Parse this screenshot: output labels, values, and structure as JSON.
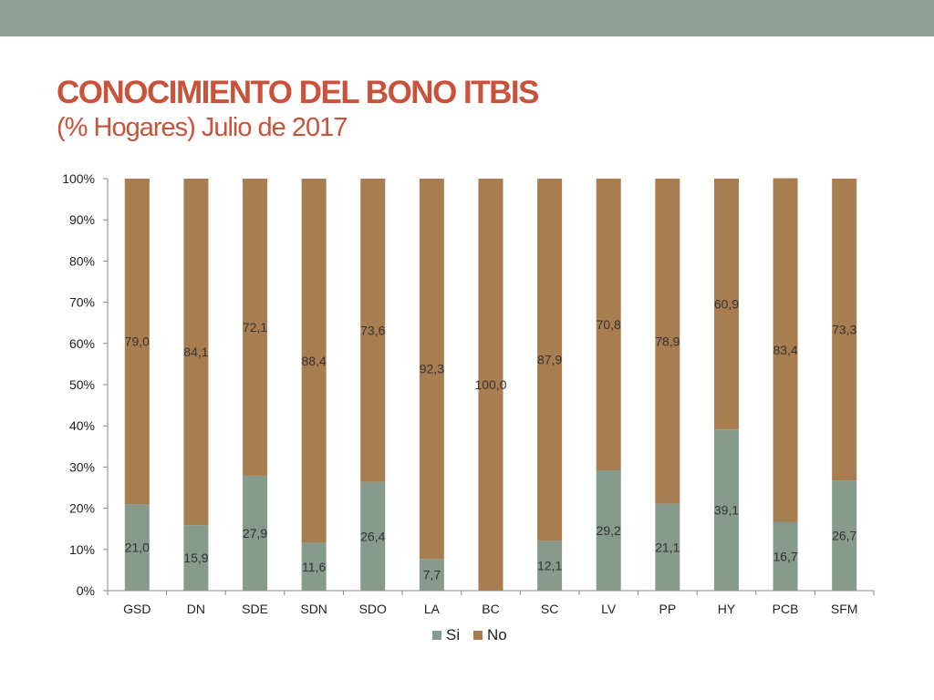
{
  "slide": {
    "title": "CONOCIMIENTO DEL BONO ITBIS",
    "subtitle": "(% Hogares) Julio de 2017"
  },
  "colors": {
    "top_bar": "#8fa197",
    "title": "#c8523a",
    "subtitle": "#c8523a",
    "si": "#869a8d",
    "no": "#a87d4f"
  },
  "chart_data": {
    "type": "bar",
    "stacked": true,
    "title": "",
    "xlabel": "",
    "ylabel": "",
    "ylim": [
      0,
      100
    ],
    "yticks": [
      "0%",
      "10%",
      "20%",
      "30%",
      "40%",
      "50%",
      "60%",
      "70%",
      "80%",
      "90%",
      "100%"
    ],
    "categories": [
      "GSD",
      "DN",
      "SDE",
      "SDN",
      "SDO",
      "LA",
      "BC",
      "SC",
      "LV",
      "PP",
      "HY",
      "PCB",
      "SFM"
    ],
    "series": [
      {
        "name": "Si",
        "values": [
          21.0,
          15.9,
          27.9,
          11.6,
          26.4,
          7.7,
          0,
          12.1,
          29.2,
          21.1,
          39.1,
          16.7,
          26.7
        ],
        "labels": [
          "21,0",
          "15,9",
          "27,9",
          "11,6",
          "26,4",
          "7,7",
          "",
          "12,1",
          "29,2",
          "21,1",
          "39,1",
          "16,7",
          "26,7"
        ]
      },
      {
        "name": "No",
        "values": [
          79.0,
          84.1,
          72.1,
          88.4,
          73.6,
          92.3,
          100.0,
          87.9,
          70.8,
          78.9,
          60.9,
          83.4,
          73.3
        ],
        "labels": [
          "79,0",
          "84,1",
          "72,1",
          "88,4",
          "73,6",
          "92,3",
          "100,0",
          "87,9",
          "70,8",
          "78,9",
          "60,9",
          "83,4",
          "73,3"
        ]
      }
    ],
    "legend": "bottom",
    "grid": false
  }
}
